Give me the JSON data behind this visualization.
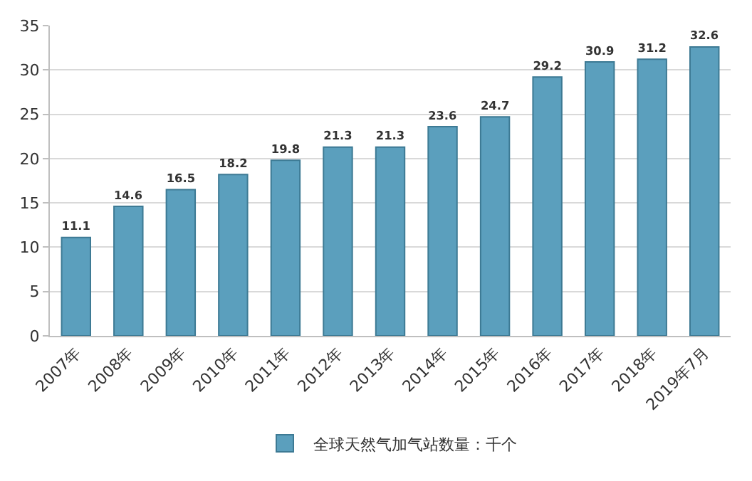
{
  "chart_data": {
    "type": "bar",
    "categories": [
      "2007年",
      "2008年",
      "2009年",
      "2010年",
      "2011年",
      "2012年",
      "2013年",
      "2014年",
      "2015年",
      "2016年",
      "2017年",
      "2018年",
      "2019年7月"
    ],
    "series": [
      {
        "name": "全球天然气加气站数量：千个",
        "color": "#5b9fbd",
        "values": [
          11.1,
          14.6,
          16.5,
          18.2,
          19.8,
          21.3,
          21.3,
          23.6,
          24.7,
          29.2,
          30.9,
          31.2,
          32.6
        ]
      }
    ],
    "ylim": [
      0,
      35
    ],
    "yticks": [
      0,
      5,
      10,
      15,
      20,
      25,
      30,
      35
    ],
    "grid": "y",
    "legend": "bottom",
    "data_labels": true
  }
}
